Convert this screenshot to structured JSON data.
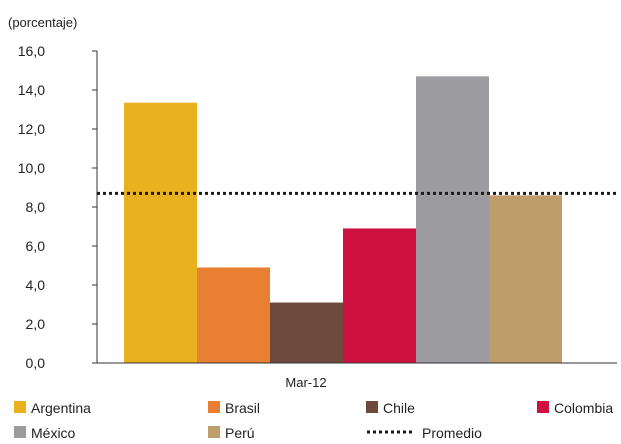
{
  "chart_data": {
    "type": "bar",
    "ylabel": "(porcentaje)",
    "categories": [
      "Mar-12"
    ],
    "ylim": [
      0,
      16
    ],
    "yticks": [
      0,
      2,
      4,
      6,
      8,
      10,
      12,
      14,
      16
    ],
    "ytick_labels": [
      "0,0",
      "2,0",
      "4,0",
      "6,0",
      "8,0",
      "10,0",
      "12,0",
      "14,0",
      "16,0"
    ],
    "series": [
      {
        "name": "Argentina",
        "values": [
          13.35
        ],
        "color": "#EAB11F"
      },
      {
        "name": "Brasil",
        "values": [
          4.9
        ],
        "color": "#E87F32"
      },
      {
        "name": "Chile",
        "values": [
          3.1
        ],
        "color": "#6E4A3C"
      },
      {
        "name": "Colombia",
        "values": [
          6.9
        ],
        "color": "#CE1140"
      },
      {
        "name": "México",
        "values": [
          14.7
        ],
        "color": "#9C9CA0"
      },
      {
        "name": "Perú",
        "values": [
          8.6
        ],
        "color": "#BF9D6B"
      }
    ],
    "reference_line": {
      "name": "Promedio",
      "value": 8.7,
      "style": "dotted",
      "color": "#1a1a1a"
    },
    "grid": false,
    "legend_position": "bottom"
  }
}
